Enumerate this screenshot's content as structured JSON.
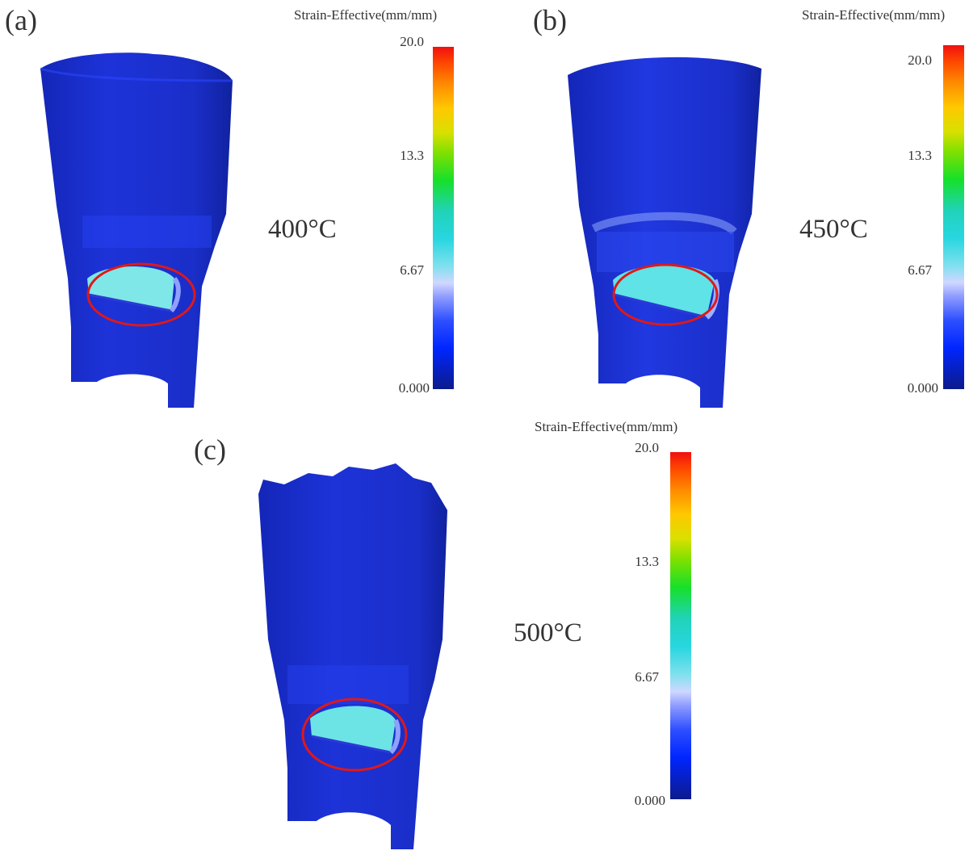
{
  "panels": [
    {
      "letter": "(a)",
      "temperature": "400°C",
      "colorbar": {
        "title": "Strain-Effective(mm/mm)",
        "ticks": [
          "20.0",
          "13.3",
          "6.67",
          "0.000"
        ]
      }
    },
    {
      "letter": "(b)",
      "temperature": "450°C",
      "colorbar": {
        "title": "Strain-Effective(mm/mm)",
        "ticks": [
          "20.0",
          "13.3",
          "6.67",
          "0.000"
        ]
      }
    },
    {
      "letter": "(c)",
      "temperature": "500°C",
      "colorbar": {
        "title": "Strain-Effective(mm/mm)",
        "ticks": [
          "20.0",
          "13.3",
          "6.67",
          "0.000"
        ]
      }
    }
  ],
  "colors": {
    "part_blue": "#1a2fd6",
    "highlight_cyan": "#5fe3e6",
    "circle_red": "#e01818"
  }
}
